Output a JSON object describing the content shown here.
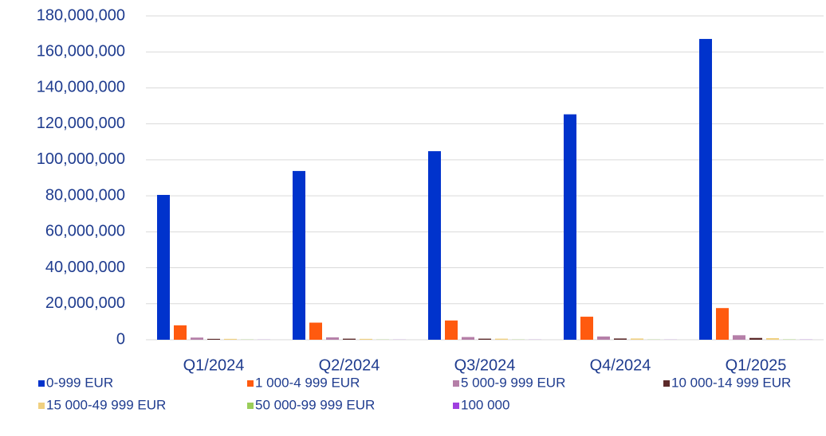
{
  "chart_data": {
    "type": "bar",
    "categories": [
      "Q1/2024",
      "Q2/2024",
      "Q3/2024",
      "Q4/2024",
      "Q1/2025"
    ],
    "series": [
      {
        "name": "0-999 EUR",
        "color": "#0033cc",
        "values": [
          80500000,
          93800000,
          104800000,
          125300000,
          167200000
        ]
      },
      {
        "name": "1 000-4 999 EUR",
        "color": "#ff5a0f",
        "values": [
          8000000,
          9500000,
          10700000,
          12800000,
          17600000
        ]
      },
      {
        "name": "5 000-9 999 EUR",
        "color": "#b57fa8",
        "values": [
          1200000,
          1300000,
          1500000,
          1800000,
          2500000
        ]
      },
      {
        "name": "10 000-14 999 EUR",
        "color": "#5c2a2a",
        "values": [
          500000,
          600000,
          600000,
          700000,
          1000000
        ]
      },
      {
        "name": "15 000-49 999 EUR",
        "color": "#f0d080",
        "values": [
          500000,
          500000,
          600000,
          700000,
          900000
        ]
      },
      {
        "name": "50 000-99 999 EUR",
        "color": "#9acd5a",
        "values": [
          100000,
          100000,
          100000,
          100000,
          150000
        ]
      },
      {
        "name": "100 000",
        "color": "#a040e0",
        "values": [
          50000,
          50000,
          50000,
          50000,
          80000
        ]
      }
    ],
    "ylim": [
      0,
      180000000
    ],
    "yticks": [
      0,
      {
        "value": 20000000,
        "label": "20,000,000"
      },
      {
        "value": 40000000,
        "label": "40,000,000"
      },
      {
        "value": 60000000,
        "label": "60,000,000"
      },
      {
        "value": 80000000,
        "label": "80,000,000"
      },
      {
        "value": 100000000,
        "label": "100,000,000"
      },
      {
        "value": 120000000,
        "label": "120,000,000"
      },
      {
        "value": 140000000,
        "label": "140,000,000"
      },
      {
        "value": 160000000,
        "label": "160,000,000"
      },
      {
        "value": 180000000,
        "label": "180,000,000"
      }
    ],
    "grid": true
  }
}
